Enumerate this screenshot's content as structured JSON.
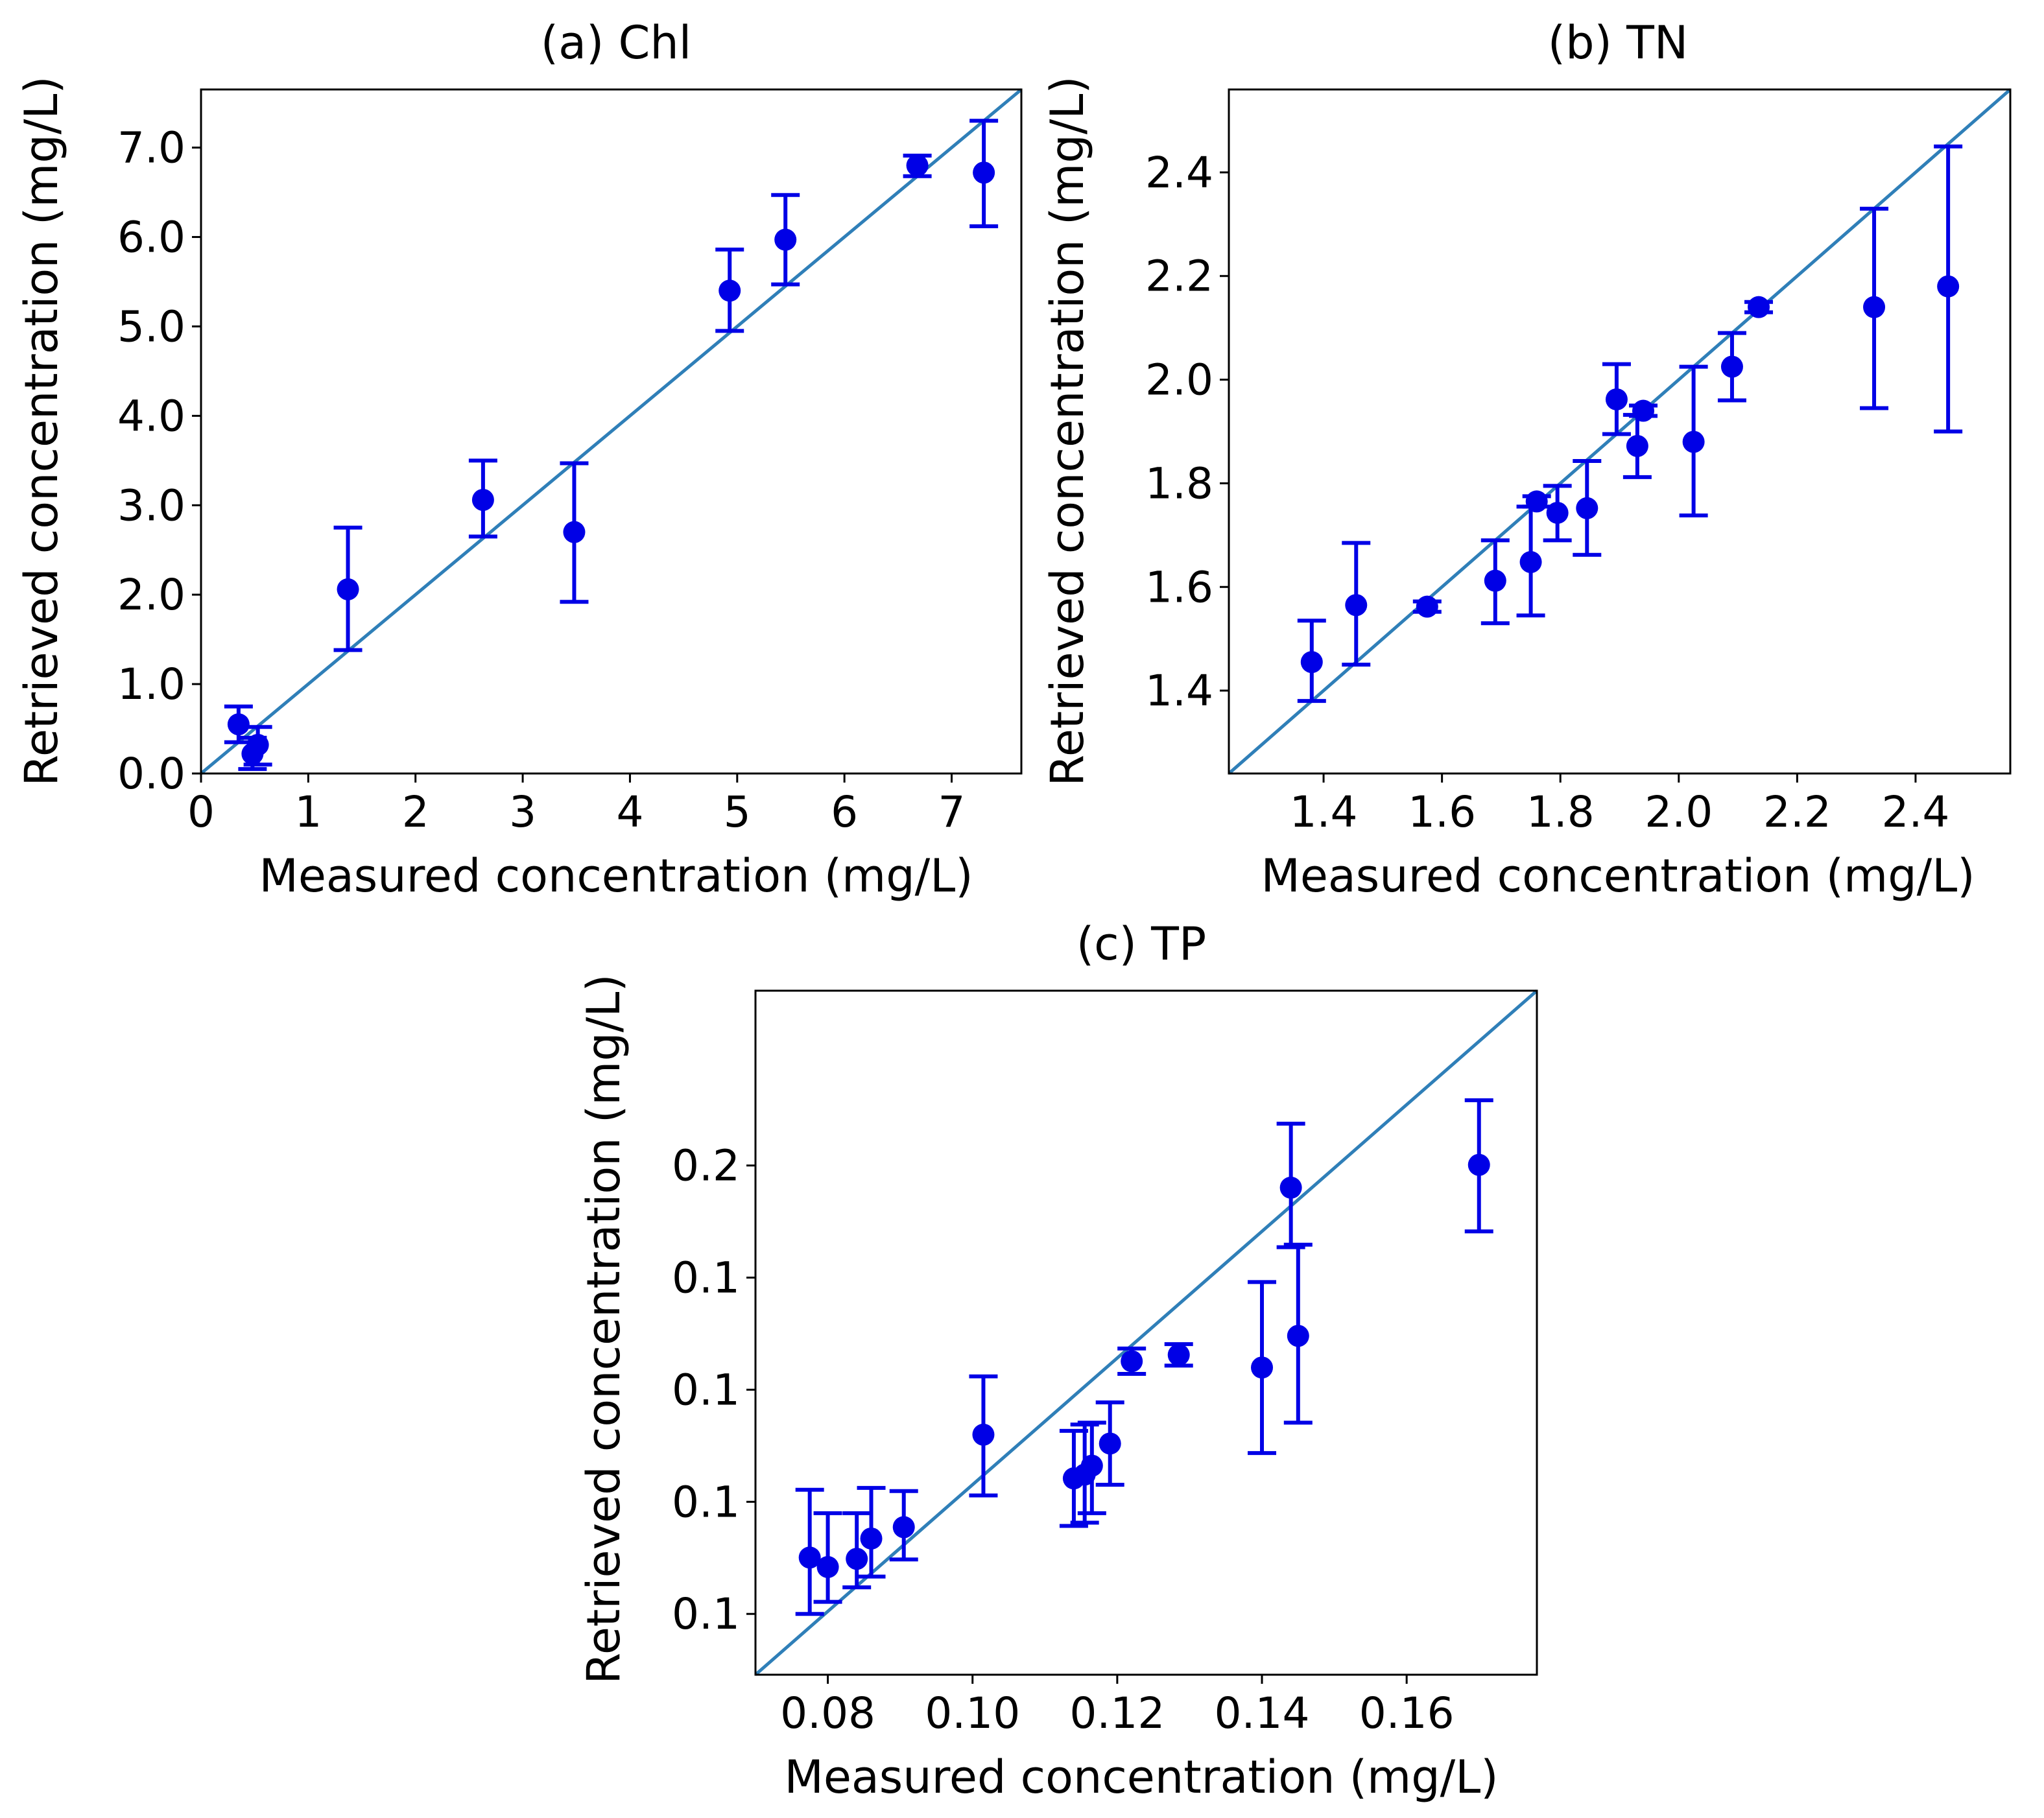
{
  "chart_data": [
    {
      "type": "scatter",
      "title": "(a) Chl",
      "xlabel": "Measured concentration (mg/L)",
      "ylabel": "Retrieved concentration (mg/L)",
      "xlim": [
        0,
        7.65
      ],
      "ylim": [
        0,
        7.65
      ],
      "xticks": [
        0,
        1,
        2,
        3,
        4,
        5,
        6,
        7
      ],
      "xtick_labels": [
        "0",
        "1",
        "2",
        "3",
        "4",
        "5",
        "6",
        "7"
      ],
      "yticks": [
        0,
        1,
        2,
        3,
        4,
        5,
        6,
        7
      ],
      "ytick_labels": [
        "0.0",
        "1.0",
        "2.0",
        "3.0",
        "4.0",
        "5.0",
        "6.0",
        "7.0"
      ],
      "reference_line": "y = x",
      "points": [
        {
          "x": 0.35,
          "y": 0.55,
          "ylo": 0.35,
          "yhi": 0.75
        },
        {
          "x": 0.48,
          "y": 0.22,
          "ylo": 0.05,
          "yhi": 0.4
        },
        {
          "x": 0.53,
          "y": 0.32,
          "ylo": 0.1,
          "yhi": 0.52
        },
        {
          "x": 1.37,
          "y": 2.06,
          "ylo": 1.38,
          "yhi": 2.75
        },
        {
          "x": 2.63,
          "y": 3.06,
          "ylo": 2.65,
          "yhi": 3.5
        },
        {
          "x": 3.48,
          "y": 2.7,
          "ylo": 1.92,
          "yhi": 3.47
        },
        {
          "x": 4.93,
          "y": 5.4,
          "ylo": 4.95,
          "yhi": 5.86
        },
        {
          "x": 5.45,
          "y": 5.97,
          "ylo": 5.47,
          "yhi": 6.47
        },
        {
          "x": 6.68,
          "y": 6.8,
          "ylo": 6.68,
          "yhi": 6.91
        },
        {
          "x": 7.3,
          "y": 6.72,
          "ylo": 6.12,
          "yhi": 7.3
        }
      ]
    },
    {
      "type": "scatter",
      "title": "(b) TN",
      "xlabel": "Measured concentration (mg/L)",
      "ylabel": "Retrieved concentration (mg/L)",
      "xlim": [
        1.24,
        2.56
      ],
      "ylim": [
        1.24,
        2.56
      ],
      "xticks": [
        1.4,
        1.6,
        1.8,
        2.0,
        2.2,
        2.4
      ],
      "xtick_labels": [
        "1.4",
        "1.6",
        "1.8",
        "2.0",
        "2.2",
        "2.4"
      ],
      "yticks": [
        1.4,
        1.6,
        1.8,
        2.0,
        2.2,
        2.4
      ],
      "ytick_labels": [
        "1.4",
        "1.6",
        "1.8",
        "2.0",
        "2.2",
        "2.4"
      ],
      "reference_line": "y = x",
      "points": [
        {
          "x": 1.38,
          "y": 1.455,
          "ylo": 1.38,
          "yhi": 1.535
        },
        {
          "x": 1.455,
          "y": 1.565,
          "ylo": 1.45,
          "yhi": 1.685
        },
        {
          "x": 1.575,
          "y": 1.562,
          "ylo": 1.552,
          "yhi": 1.572
        },
        {
          "x": 1.69,
          "y": 1.612,
          "ylo": 1.53,
          "yhi": 1.69
        },
        {
          "x": 1.75,
          "y": 1.648,
          "ylo": 1.545,
          "yhi": 1.755
        },
        {
          "x": 1.76,
          "y": 1.765,
          "ylo": 1.755,
          "yhi": 1.775
        },
        {
          "x": 1.795,
          "y": 1.743,
          "ylo": 1.69,
          "yhi": 1.795
        },
        {
          "x": 1.845,
          "y": 1.752,
          "ylo": 1.662,
          "yhi": 1.843
        },
        {
          "x": 1.895,
          "y": 1.962,
          "ylo": 1.895,
          "yhi": 2.03
        },
        {
          "x": 1.93,
          "y": 1.872,
          "ylo": 1.812,
          "yhi": 1.932
        },
        {
          "x": 1.94,
          "y": 1.94,
          "ylo": 1.93,
          "yhi": 1.95
        },
        {
          "x": 2.025,
          "y": 1.88,
          "ylo": 1.738,
          "yhi": 2.025
        },
        {
          "x": 2.09,
          "y": 2.025,
          "ylo": 1.96,
          "yhi": 2.09
        },
        {
          "x": 2.135,
          "y": 2.14,
          "ylo": 2.13,
          "yhi": 2.15
        },
        {
          "x": 2.33,
          "y": 2.14,
          "ylo": 1.945,
          "yhi": 2.33
        },
        {
          "x": 2.455,
          "y": 2.18,
          "ylo": 1.9,
          "yhi": 2.45
        }
      ]
    },
    {
      "type": "scatter",
      "title": "(c) TP",
      "xlabel": "Measured concentration (mg/L)",
      "ylabel": "Retrieved concentration (mg/L)",
      "xlim": [
        0.07,
        0.178
      ],
      "ylim": [
        0.07,
        0.178
      ],
      "xticks": [
        0.08,
        0.1,
        0.12,
        0.14,
        0.16
      ],
      "xtick_labels": [
        "0.08",
        "0.10",
        "0.12",
        "0.14",
        "0.16"
      ],
      "yticks": [
        0.0796,
        0.0973,
        0.115,
        0.1327,
        0.1504
      ],
      "ytick_labels": [
        "0.1",
        "0.1",
        "0.1",
        "0.1",
        "0.2"
      ],
      "reference_line": "y = x",
      "points": [
        {
          "x": 0.0775,
          "y": 0.0885,
          "ylo": 0.0796,
          "yhi": 0.0992
        },
        {
          "x": 0.08,
          "y": 0.087,
          "ylo": 0.0815,
          "yhi": 0.0955
        },
        {
          "x": 0.084,
          "y": 0.0883,
          "ylo": 0.0838,
          "yhi": 0.0955
        },
        {
          "x": 0.086,
          "y": 0.0915,
          "ylo": 0.0855,
          "yhi": 0.0995
        },
        {
          "x": 0.0905,
          "y": 0.0933,
          "ylo": 0.0882,
          "yhi": 0.099
        },
        {
          "x": 0.1015,
          "y": 0.1079,
          "ylo": 0.0983,
          "yhi": 0.1171
        },
        {
          "x": 0.114,
          "y": 0.101,
          "ylo": 0.0935,
          "yhi": 0.1085
        },
        {
          "x": 0.1155,
          "y": 0.1016,
          "ylo": 0.094,
          "yhi": 0.1095
        },
        {
          "x": 0.1165,
          "y": 0.103,
          "ylo": 0.0955,
          "yhi": 0.1098
        },
        {
          "x": 0.119,
          "y": 0.1065,
          "ylo": 0.1,
          "yhi": 0.113
        },
        {
          "x": 0.122,
          "y": 0.1195,
          "ylo": 0.1175,
          "yhi": 0.1215
        },
        {
          "x": 0.1285,
          "y": 0.1205,
          "ylo": 0.1188,
          "yhi": 0.1222
        },
        {
          "x": 0.14,
          "y": 0.1185,
          "ylo": 0.105,
          "yhi": 0.132
        },
        {
          "x": 0.144,
          "y": 0.1469,
          "ylo": 0.1375,
          "yhi": 0.157
        },
        {
          "x": 0.145,
          "y": 0.1235,
          "ylo": 0.1098,
          "yhi": 0.1379
        },
        {
          "x": 0.17,
          "y": 0.1505,
          "ylo": 0.14,
          "yhi": 0.1607
        }
      ]
    }
  ]
}
